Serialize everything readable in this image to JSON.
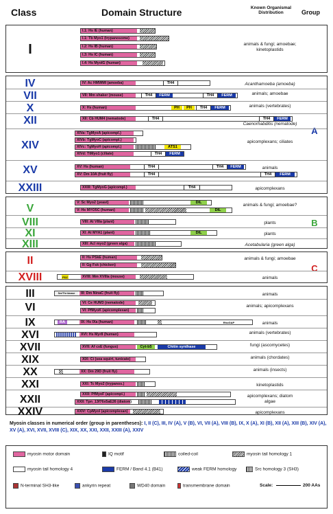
{
  "header": {
    "class": "Class",
    "domain": "Domain Structure",
    "dist": "Known Organismal Distribution",
    "group": "Group"
  },
  "classI": {
    "label": "I",
    "dist": "animals & fungi; amoebae; kinetoplastids",
    "bars": [
      "I.1: Hs IE (human)",
      "I.1: Tb Myo1 (trypanosome)",
      "I.2: Hs IB (human)",
      "I.3: Hs IC (human)",
      "I.4: Hs MyoIG (human)"
    ]
  },
  "groupA": {
    "label": "A",
    "rows": [
      {
        "cls": "IV",
        "bar": "IV: Ac HMWMI (amoeba)",
        "dist": "Acanthamoeba (amoeba)"
      },
      {
        "cls": "VII",
        "bar": "VII: Mm shaker (mouse)",
        "dist": "animals; amoebae"
      },
      {
        "cls": "X",
        "bar": "X: Hs (human)",
        "dist": "animals (vertebrates)"
      },
      {
        "cls": "XII",
        "bar": "XII: Cb HUM4 (nematode)",
        "dist": "Caenorhabditis (nematode)"
      },
      {
        "cls": "XIV",
        "bars": [
          "XIVa: TgMyoA (apicompl.)",
          "XIVb: TgMyoC (apicompl.)",
          "XIVc: TgMyoH (apicompl.)",
          "XIVd: TtMyo1 (ciliate)"
        ],
        "dist": "apicomplexans; ciliates"
      },
      {
        "cls": "XV",
        "bars": [
          "XV: Hs (human)",
          "XV: Dm 10A (fruit fly)"
        ],
        "dist": "animals"
      },
      {
        "cls": "XXIII",
        "bar": "XXIII: TgMyoG (apicompl.)",
        "dist": "apicomplexans"
      }
    ]
  },
  "groupB": {
    "label": "B",
    "rows": [
      {
        "cls": "V",
        "bars": [
          "V: Sc Myo2 (yeast)",
          "V: Hs MYO5C (human)"
        ],
        "dist": "animals & fungi; amoebae?"
      },
      {
        "cls": "VIII",
        "bar": "VIII: At VIIIa (plant)",
        "dist": "plants"
      },
      {
        "cls": "XI",
        "bar": "XI: At MYA1 (plant)",
        "dist": "plants"
      },
      {
        "cls": "XIII",
        "bar": "XIII: Acl myo2 (green alga)",
        "dist": "Acetabularia (green alga)"
      }
    ]
  },
  "groupC": {
    "label": "C",
    "rows": [
      {
        "cls": "II",
        "bars": [
          "II: Hs PSkE (human)",
          "II: Gg Fsk (chicken)"
        ],
        "dist": "animals & fungi; amoebae"
      },
      {
        "cls": "XVIII",
        "bar": "XVIII: Mm XVIIIa (mouse)",
        "dist": "animals",
        "pre": "PDZ"
      }
    ]
  },
  "others": [
    {
      "cls": "III",
      "bar": "III: Dm NinaC (fruit fly)",
      "pre": "Ser/Thr kinase",
      "dist": "animals"
    },
    {
      "cls": "VI",
      "bars": [
        "VI: Ce HUM3 (nematode)",
        "VI: PfMyoK (apicomplexan)"
      ],
      "dist": "animals; apicomplexans"
    },
    {
      "cls": "IX",
      "bar": "IX: Hs IXa (human)",
      "pre": "RA",
      "post": "RhoGAP",
      "dist": "animals"
    },
    {
      "cls": "XVI",
      "bar": "XVI: Hs Myr8 (human)",
      "dist": "animals (vertebrates)"
    },
    {
      "cls": "XVII",
      "bar": "XVII: Af csE (fungus)",
      "d1": "Cyt-b5",
      "d2": "Chitin synthase",
      "dist": "fungi (ascomycetes)"
    },
    {
      "cls": "XIX",
      "bar": "XIX: Ci (sea squirt, tunicate)",
      "dist": "animals (chordates)"
    },
    {
      "cls": "XX",
      "bar": "XX: Dm 29D (fruit fly)",
      "dist": "animals (insects)"
    },
    {
      "cls": "XXI",
      "bar": "XXI: Tc Myo2 (trypanos.)",
      "dist": "kinetoplastids"
    },
    {
      "cls": "XXII",
      "bars": [
        "XXII: PfMyoF (apicompl.)",
        "XXII: Tpn_13f76x5aE26 (diatom)"
      ],
      "dist": "apicomplexans; diatom algae"
    },
    {
      "cls": "XXIV",
      "bar": "XXIV: CpMyoI (apicomplexan)",
      "dist": "apicomplexans"
    }
  ],
  "domains": {
    "th4": "TH4",
    "ferm": "FERM",
    "ph": "PH",
    "dil": "DIL",
    "ats1": "ATS1"
  },
  "summary": {
    "intro": "Myosin classes in numerical order (group in parentheses):",
    "list": "I, II (C), III, IV (A), V (B), VI, VII (A), VIII (B), IX, X (A), XI (B), XII (A), XIII (B), XIV (A), XV (A), XVI, XVII, XVIII (C), XIX, XX, XXI, XXII, XXIII (A), XXIV"
  },
  "legend": {
    "motor": "myosin motor domain",
    "iq": "IQ motif",
    "coil": "coiled-coil",
    "th1": "myosin tail homology 1",
    "th4": "myosin tail homology 4",
    "ferm": "FERM / Band 4.1 (B41)",
    "wferm": "weak FERM homology",
    "sh3": "Src homology 3 (SH3)",
    "nsh3": "N-terminal SH3-like",
    "ank": "ankyrin repeat",
    "wd40": "WD40 domain",
    "tm": "transmembrane domain",
    "scale": "Scale:",
    "scale_val": "200 AAs"
  },
  "colors": {
    "motor": "#e066a0",
    "ferm": "#1a3aa8",
    "ph": "#f3e600",
    "dil": "#8fd04a",
    "groupA": "#1a3aa8",
    "groupB": "#3aa63a",
    "groupC": "#d22020"
  }
}
